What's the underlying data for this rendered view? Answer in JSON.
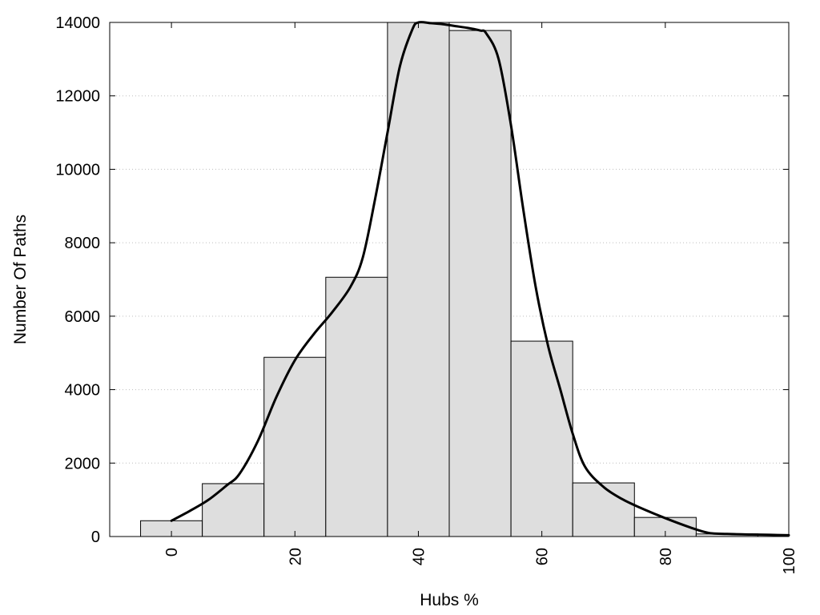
{
  "chart_data": {
    "type": "bar",
    "title": "",
    "xlabel": "Hubs %",
    "ylabel": "Number Of Paths",
    "xlim": [
      -10,
      100
    ],
    "ylim": [
      0,
      14000
    ],
    "grid": "horizontal dotted",
    "legend": "none",
    "bin_width": 10,
    "bars": [
      {
        "center": 0,
        "value": 430
      },
      {
        "center": 10,
        "value": 1440
      },
      {
        "center": 20,
        "value": 4880
      },
      {
        "center": 30,
        "value": 7060
      },
      {
        "center": 40,
        "value": 14000
      },
      {
        "center": 50,
        "value": 13780
      },
      {
        "center": 60,
        "value": 5320
      },
      {
        "center": 70,
        "value": 1460
      },
      {
        "center": 80,
        "value": 520
      },
      {
        "center": 90,
        "value": 70
      }
    ],
    "curve": {
      "x": [
        0,
        3,
        6,
        9,
        11,
        14,
        17,
        20,
        23,
        26,
        29,
        31,
        33,
        35,
        37,
        39,
        40,
        42,
        44,
        46,
        48,
        50,
        51,
        53,
        55,
        57,
        59,
        61,
        63,
        65,
        67,
        70,
        73,
        76,
        80,
        84,
        87,
        90,
        94,
        97,
        100
      ],
      "y": [
        430,
        700,
        1000,
        1400,
        1700,
        2600,
        3800,
        4800,
        5500,
        6100,
        6800,
        7600,
        9200,
        11000,
        12800,
        13800,
        14000,
        13980,
        13950,
        13900,
        13850,
        13780,
        13700,
        13000,
        11200,
        8900,
        6800,
        5200,
        4000,
        2800,
        1900,
        1350,
        1020,
        780,
        500,
        250,
        100,
        70,
        55,
        45,
        35
      ]
    },
    "x_ticks": [
      0,
      20,
      40,
      60,
      80,
      100
    ],
    "x_tick_labels": [
      "0",
      "20",
      "40",
      "60",
      "80",
      "100"
    ],
    "y_ticks": [
      0,
      2000,
      4000,
      6000,
      8000,
      10000,
      12000,
      14000
    ],
    "y_tick_labels": [
      "0",
      "2000",
      "4000",
      "6000",
      "8000",
      "10000",
      "12000",
      "14000"
    ]
  }
}
